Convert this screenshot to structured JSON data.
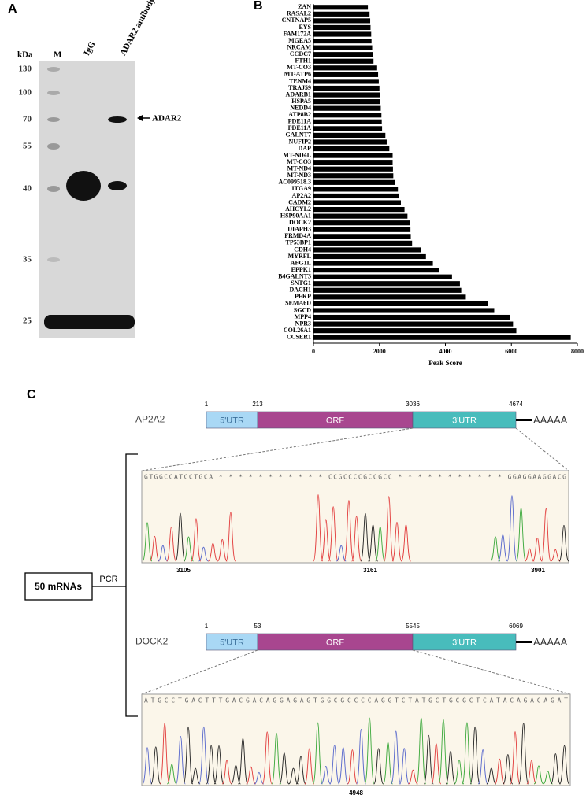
{
  "panel_labels": [
    "A",
    "B",
    "C"
  ],
  "western_blot": {
    "unit": "kDa",
    "lanes": [
      "M",
      "IgG",
      "ADAR2 antibody"
    ],
    "markers": [
      130,
      100,
      70,
      55,
      40,
      35,
      25
    ],
    "band_label": "ADAR2"
  },
  "chart_data": {
    "type": "bar",
    "orientation": "horizontal",
    "categories": [
      "ZAN",
      "RASAL2",
      "CNTNAP5",
      "EYS",
      "FAM172A",
      "MGEA5",
      "NRCAM",
      "CCDC7",
      "FTH1",
      "MT-CO3",
      "MT-ATP6",
      "TENM4",
      "TRAJ59",
      "ADARB1",
      "HSPA5",
      "NEDD4",
      "ATP8B2",
      "PDE11A",
      "PDE11A",
      "GALNT7",
      "NUFIP2",
      "DAP",
      "MT-ND4L",
      "MT-CO3",
      "MT-ND4",
      "MT-ND3",
      "AC099518.3",
      "ITGA9",
      "AP2A2",
      "CADM2",
      "AHCYL2",
      "HSP90AA1",
      "DOCK2",
      "DIAPH3",
      "FRMD4A",
      "TP53BP1",
      "CDH4",
      "MYRFL",
      "AFG1L",
      "EPPK1",
      "B4GALNT3",
      "SNTG1",
      "DACH1",
      "PFKP",
      "SEMA6D",
      "SGCD",
      "MPP4",
      "NPR3",
      "COL26A1",
      "CCSER1"
    ],
    "values": [
      1650,
      1700,
      1720,
      1730,
      1750,
      1760,
      1780,
      1800,
      1820,
      1930,
      1960,
      1980,
      2000,
      2020,
      2030,
      2040,
      2060,
      2070,
      2080,
      2180,
      2220,
      2300,
      2400,
      2400,
      2410,
      2420,
      2470,
      2560,
      2600,
      2650,
      2760,
      2850,
      2930,
      2940,
      2950,
      2990,
      3270,
      3410,
      3620,
      3810,
      4200,
      4440,
      4480,
      4620,
      5300,
      5480,
      5950,
      6050,
      6150,
      7800
    ],
    "color": "#000000",
    "xlim": [
      0,
      8000
    ],
    "xticks": [
      0,
      2000,
      4000,
      6000,
      8000
    ],
    "xlabel": "Peak Score"
  },
  "sequencing": {
    "source": "50 mRNAs",
    "method": "PCR",
    "genes": [
      {
        "name": "AP2A2",
        "positions": [
          1,
          213,
          3036,
          4674
        ],
        "regions": [
          "5'UTR",
          "ORF",
          "3'UTR"
        ],
        "poly_a": "AAAAA",
        "sequence": "GTGGCCATCCTGCA * * * * * * * * * * * CCGCCCCGCCGCC * * * * * * * * * * * GGAGGAAGGACG",
        "trace_positions": [
          3105,
          3161,
          3901
        ]
      },
      {
        "name": "DOCK2",
        "positions": [
          1,
          53,
          5545,
          6069
        ],
        "regions": [
          "5'UTR",
          "ORF",
          "3'UTR"
        ],
        "poly_a": "AAAAA",
        "sequence": "ATGCCTGACTTTGACGACAGGAGAGTGGCGCCCCAGGTCTATGCTGCGCTCATACAGACAGAT",
        "trace_positions": [
          4948
        ]
      }
    ]
  }
}
